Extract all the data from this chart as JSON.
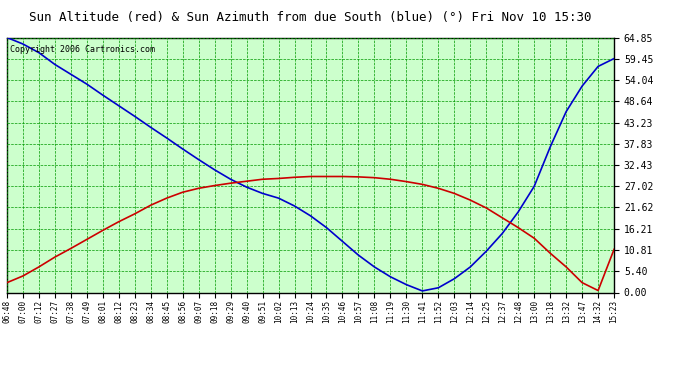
{
  "title": "Sun Altitude (red) & Sun Azimuth from due South (blue) (°) Fri Nov 10 15:30",
  "copyright": "Copyright 2006 Cartronics.com",
  "yticks": [
    0.0,
    5.4,
    10.81,
    16.21,
    21.62,
    27.02,
    32.43,
    37.83,
    43.23,
    48.64,
    54.04,
    59.45,
    64.85
  ],
  "ymax": 64.85,
  "ymin": 0.0,
  "plot_bg": "#ccffcc",
  "grid_color": "#009900",
  "x_labels": [
    "06:48",
    "07:00",
    "07:12",
    "07:27",
    "07:38",
    "07:49",
    "08:01",
    "08:12",
    "08:23",
    "08:34",
    "08:45",
    "08:56",
    "09:07",
    "09:18",
    "09:29",
    "09:40",
    "09:51",
    "10:02",
    "10:13",
    "10:24",
    "10:35",
    "10:46",
    "10:57",
    "11:08",
    "11:19",
    "11:30",
    "11:41",
    "11:52",
    "12:03",
    "12:14",
    "12:25",
    "12:37",
    "12:48",
    "13:00",
    "13:18",
    "13:32",
    "13:47",
    "14:32",
    "15:23"
  ],
  "blue_y": [
    64.85,
    63.2,
    61.0,
    58.0,
    55.5,
    53.0,
    50.2,
    47.5,
    44.8,
    42.0,
    39.3,
    36.5,
    33.8,
    31.2,
    28.8,
    26.8,
    25.2,
    24.0,
    22.0,
    19.5,
    16.5,
    13.0,
    9.5,
    6.5,
    4.0,
    2.0,
    0.4,
    1.2,
    3.5,
    6.5,
    10.5,
    15.0,
    20.5,
    27.0,
    37.0,
    46.0,
    52.5,
    57.5,
    59.5
  ],
  "red_y": [
    2.5,
    4.2,
    6.5,
    9.0,
    11.2,
    13.5,
    15.8,
    18.0,
    20.0,
    22.2,
    24.0,
    25.5,
    26.5,
    27.2,
    27.8,
    28.3,
    28.8,
    29.0,
    29.3,
    29.5,
    29.5,
    29.5,
    29.4,
    29.2,
    28.8,
    28.2,
    27.5,
    26.5,
    25.2,
    23.5,
    21.5,
    19.0,
    16.5,
    13.8,
    10.0,
    6.5,
    2.5,
    0.5,
    11.0
  ],
  "line_color_blue": "#0000cc",
  "line_color_red": "#cc0000",
  "outer_bg": "#ffffff",
  "border_color": "#000000",
  "title_fontsize": 9,
  "tick_fontsize": 7,
  "xtick_fontsize": 5.5,
  "copyright_fontsize": 6
}
